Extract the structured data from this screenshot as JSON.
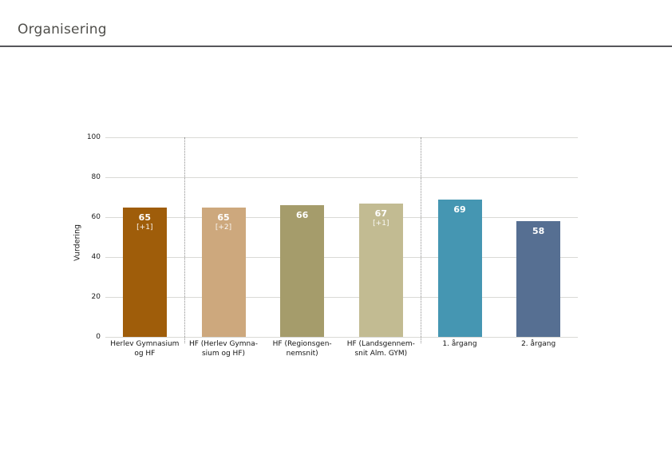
{
  "header": {
    "title": "Organisering"
  },
  "colors": {
    "title_text": "#504f4b",
    "title_rule": "#57575b",
    "gridline": "#d9d9d6",
    "axis_text": "#1a1a1a",
    "value_text": "#ffffff"
  },
  "chart_data": {
    "type": "bar",
    "title": "Organisering",
    "xlabel": "",
    "ylabel": "Vurdering",
    "ylim": [
      0,
      100
    ],
    "yticks": [
      0,
      20,
      40,
      60,
      80,
      100
    ],
    "grid": true,
    "legend": "none",
    "categories": [
      "Herlev Gymnasium\nog HF",
      "HF (Herlev Gymna-\nsium og HF)",
      "HF (Regionsgen-\nnemsnit)",
      "HF (Landsgennem-\nsnit Alm. GYM)",
      "1. årgang",
      "2. årgang"
    ],
    "values": [
      65,
      65,
      66,
      67,
      69,
      58
    ],
    "value_annotations": [
      "[+1]",
      "[+2]",
      null,
      "[+1]",
      null,
      null
    ],
    "bar_colors": [
      "#9f5d0a",
      "#cda87d",
      "#a59c6b",
      "#c2bb92",
      "#4596b2",
      "#566f92"
    ],
    "separators_after_category_index": [
      0,
      3
    ]
  }
}
